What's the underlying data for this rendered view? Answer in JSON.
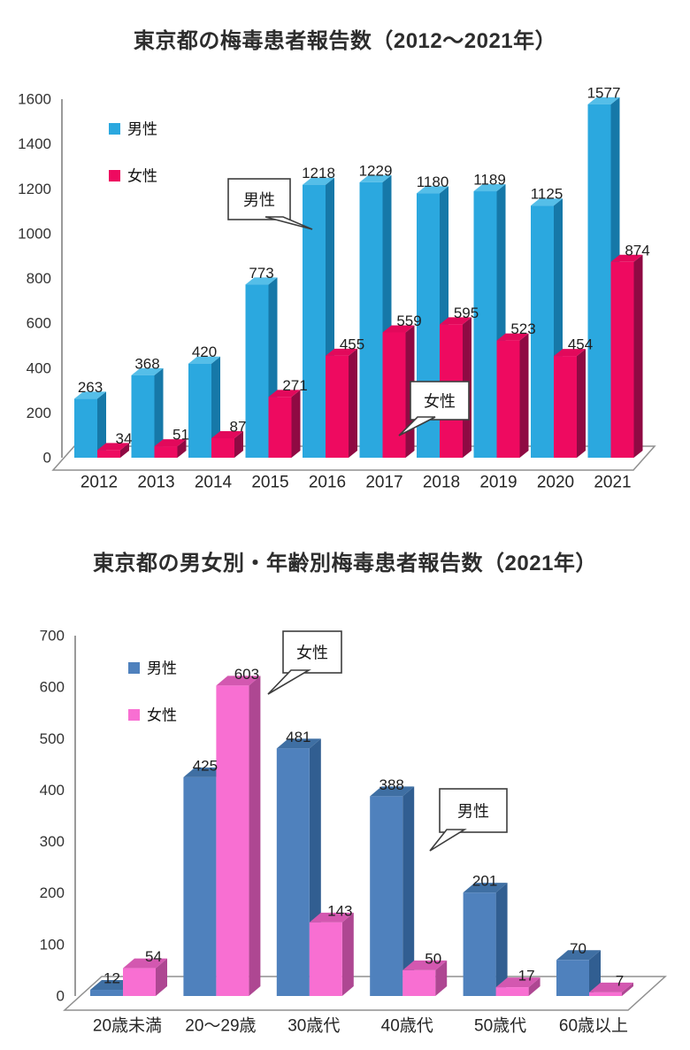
{
  "page": {
    "background": "#ffffff",
    "style": {
      "axis_color": "#8f8f8f",
      "text_color": "#262626"
    }
  },
  "chart_data": [
    {
      "type": "bar",
      "style": "3d-column",
      "title": "東京都の梅毒患者報告数（2012～2021年）",
      "categories": [
        "2012",
        "2013",
        "2014",
        "2015",
        "2016",
        "2017",
        "2018",
        "2019",
        "2020",
        "2021"
      ],
      "series": [
        {
          "name": "男性",
          "values": [
            263,
            368,
            420,
            773,
            1218,
            1229,
            1180,
            1189,
            1125,
            1577
          ],
          "color": "#2BA8DF",
          "color_top": "#55BEE8",
          "color_side": "#1678A8"
        },
        {
          "name": "女性",
          "values": [
            34,
            51,
            87,
            271,
            455,
            559,
            595,
            523,
            454,
            874
          ],
          "color": "#EE0A60",
          "color_top": "#E2095B",
          "color_side": "#8F0A43"
        }
      ],
      "xlabel": "",
      "ylabel": "",
      "ylim": [
        0,
        1600
      ],
      "ytick_step": 200,
      "grid": false,
      "legend_position": "upper-left-inside",
      "annotations": [
        {
          "label": "男性"
        },
        {
          "label": "女性"
        }
      ]
    },
    {
      "type": "bar",
      "style": "3d-column",
      "title": "東京都の男女別・年齢別梅毒患者報告数（2021年）",
      "categories": [
        "20歳未満",
        "20～29歳",
        "30歳代",
        "40歳代",
        "50歳代",
        "60歳以上"
      ],
      "series": [
        {
          "name": "男性",
          "values": [
            12,
            425,
            481,
            388,
            201,
            70
          ],
          "color": "#4F81BD",
          "color_top": "#3F6FA3",
          "color_side": "#315E91"
        },
        {
          "name": "女性",
          "values": [
            54,
            603,
            143,
            50,
            17,
            7
          ],
          "color": "#F86FD2",
          "color_top": "#D358B0",
          "color_side": "#AE4792"
        }
      ],
      "xlabel": "",
      "ylabel": "",
      "ylim": [
        0,
        700
      ],
      "ytick_step": 100,
      "grid": false,
      "legend_position": "upper-left-inside",
      "annotations": [
        {
          "label": "女性"
        },
        {
          "label": "男性"
        }
      ]
    }
  ]
}
